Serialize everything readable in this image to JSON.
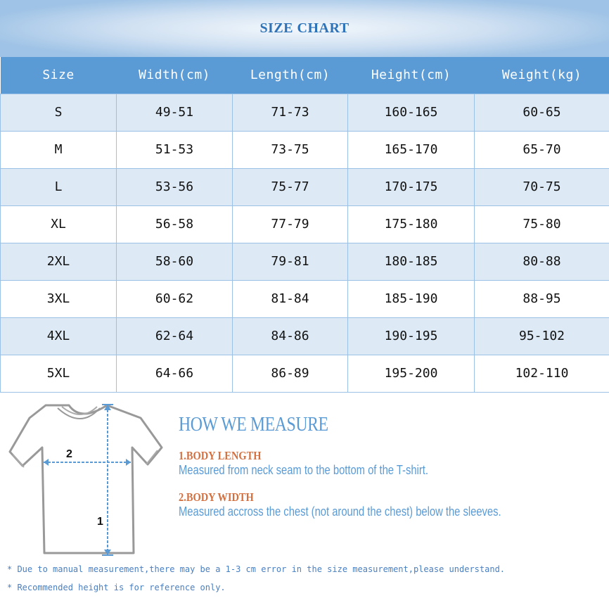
{
  "title": "SIZE CHART",
  "table": {
    "headers": [
      "Size",
      "Width(cm)",
      "Length(cm)",
      "Height(cm)",
      "Weight(kg)"
    ],
    "rows": [
      [
        "S",
        "49-51",
        "71-73",
        "160-165",
        "60-65"
      ],
      [
        "M",
        "51-53",
        "73-75",
        "165-170",
        "65-70"
      ],
      [
        "L",
        "53-56",
        "75-77",
        "170-175",
        "70-75"
      ],
      [
        "XL",
        "56-58",
        "77-79",
        "175-180",
        "75-80"
      ],
      [
        "2XL",
        "58-60",
        "79-81",
        "180-185",
        "80-88"
      ],
      [
        "3XL",
        "60-62",
        "81-84",
        "185-190",
        "88-95"
      ],
      [
        "4XL",
        "62-64",
        "84-86",
        "190-195",
        "95-102"
      ],
      [
        "5XL",
        "64-66",
        "86-89",
        "195-200",
        "102-110"
      ]
    ]
  },
  "diagram": {
    "label_width": "2",
    "label_length": "1"
  },
  "measure": {
    "title": "HOW WE MEASURE",
    "items": [
      {
        "heading": "1.BODY LENGTH",
        "desc": "Measured from neck seam to the bottom of the T-shirt."
      },
      {
        "heading": "2.BODY WIDTH",
        "desc": "Measured accross the chest (not around the chest) below the sleeves."
      }
    ]
  },
  "notes": [
    "* Due to manual measurement,there may be a 1-3  cm error in the size measurement,please understand.",
    "* Recommended height is for reference only."
  ],
  "colors": {
    "header": "#5b9bd5",
    "stripe": "#ddeaf6",
    "accent": "#d4703f"
  }
}
